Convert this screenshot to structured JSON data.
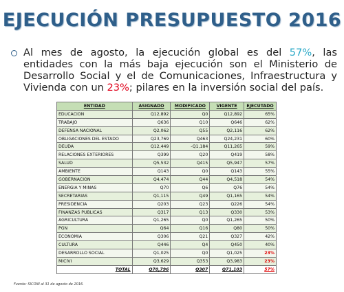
{
  "header": {
    "title": "EJECUCIÓN PRESUPUESTO 2016"
  },
  "bullet": {
    "parts": [
      "Al mes de agosto, la ejecución global es del ",
      "57%",
      ", las entidades con la más baja ejecución son el Ministerio de Desarrollo Social y el de Comunicaciones, Infraestructura y Vivienda con un ",
      "23%",
      "; pilares en la inversión social del país."
    ]
  },
  "table": {
    "columns": [
      "ENTIDAD",
      "ASIGNADO",
      "MODIFICADO",
      "VIGENTE",
      "EJECUTADO"
    ],
    "rows": [
      [
        "EDUCACION",
        "Q12,892",
        "Q0",
        "Q12,892",
        "65%"
      ],
      [
        "TRABAJO",
        "Q636",
        "Q10",
        "Q646",
        "62%"
      ],
      [
        "DEFENSA NACIONAL",
        "Q2,062",
        "Q55",
        "Q2,116",
        "62%"
      ],
      [
        "OBLIGACIONES DEL ESTADO",
        "Q23,769",
        "Q463",
        "Q24,231",
        "60%"
      ],
      [
        "DEUDA",
        "Q12,449",
        "-Q1,184",
        "Q11,265",
        "59%"
      ],
      [
        "RELACIONES EXTERIORES",
        "Q399",
        "Q20",
        "Q419",
        "58%"
      ],
      [
        "SALUD",
        "Q5,532",
        "Q415",
        "Q5,947",
        "57%"
      ],
      [
        "AMBIENTE",
        "Q143",
        "Q0",
        "Q143",
        "55%"
      ],
      [
        "GOBERNACION",
        "Q4,474",
        "Q44",
        "Q4,518",
        "54%"
      ],
      [
        "ENERGIA Y MINAS",
        "Q70",
        "Q6",
        "Q76",
        "54%"
      ],
      [
        "SECRETARIAS",
        "Q1,115",
        "Q49",
        "Q1,165",
        "54%"
      ],
      [
        "PRESIDENCIA",
        "Q203",
        "Q23",
        "Q226",
        "54%"
      ],
      [
        "FINANZAS PUBLICAS",
        "Q317",
        "Q13",
        "Q330",
        "53%"
      ],
      [
        "AGRICULTURA",
        "Q1,265",
        "Q0",
        "Q1,265",
        "50%"
      ],
      [
        "PGN",
        "Q64",
        "Q16",
        "Q80",
        "50%"
      ],
      [
        "ECONOMIA",
        "Q306",
        "Q21",
        "Q327",
        "42%"
      ],
      [
        "CULTURA",
        "Q446",
        "Q4",
        "Q450",
        "40%"
      ],
      [
        "DESARROLLO SOCIAL",
        "Q1,025",
        "Q0",
        "Q1,025",
        "23%"
      ],
      [
        "MICIVI",
        "Q3,629",
        "Q353",
        "Q3,983",
        "23%"
      ]
    ],
    "total": [
      "TOTAL",
      "Q70,796",
      "Q307",
      "Q71,103",
      "57%"
    ]
  },
  "footer": {
    "source": "Fuente: SICOIN al 31 de agosto de 2016."
  }
}
